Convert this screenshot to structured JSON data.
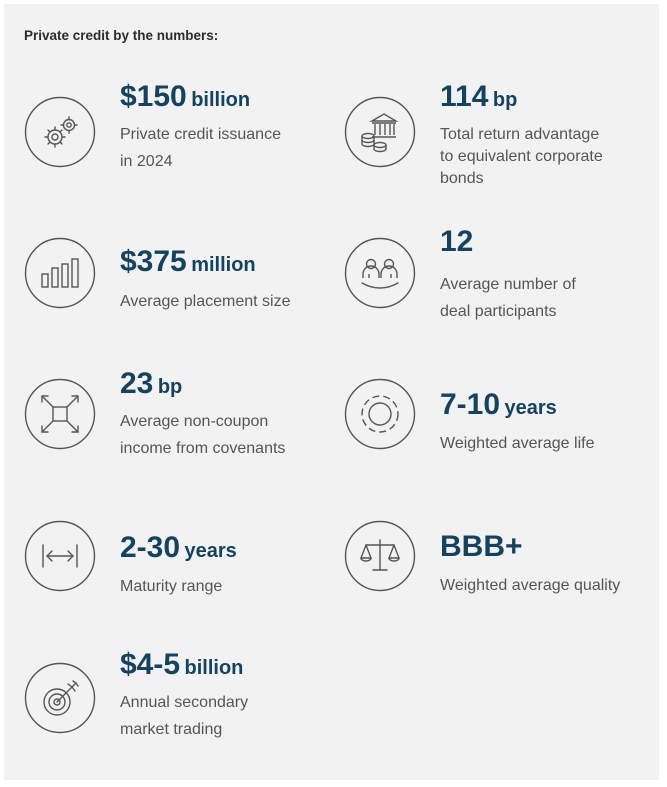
{
  "header": "Private credit by the numbers:",
  "stats": [
    {
      "icon": "gears-icon",
      "value": "$150",
      "unit": "billion",
      "description": [
        "Private credit issuance",
        "in 2024"
      ]
    },
    {
      "icon": "bank-coins-icon",
      "value": "114",
      "unit": "bp",
      "description": [
        "Total return advantage",
        "to equivalent corporate",
        "bonds"
      ]
    },
    {
      "icon": "bar-chart-icon",
      "value": "$375",
      "unit": "million",
      "description": [
        "Average placement size"
      ]
    },
    {
      "icon": "people-icon",
      "value": "12",
      "unit": "",
      "description": [
        "Average number of",
        "deal participants"
      ]
    },
    {
      "icon": "cross-arrows-icon",
      "value": "23",
      "unit": "bp",
      "description": [
        "Average non-coupon",
        "income from covenants"
      ]
    },
    {
      "icon": "rings-icon",
      "value": "7-10",
      "unit": "years",
      "description": [
        "Weighted average life"
      ]
    },
    {
      "icon": "range-arrow-icon",
      "value": "2-30",
      "unit": "years",
      "description": [
        "Maturity range"
      ]
    },
    {
      "icon": "scale-icon",
      "value": "BBB+",
      "unit": "",
      "description": [
        "Weighted average quality"
      ]
    },
    {
      "icon": "target-icon",
      "value": "$4-5",
      "unit": "billion",
      "description": [
        "Annual secondary",
        "market trading"
      ]
    }
  ]
}
